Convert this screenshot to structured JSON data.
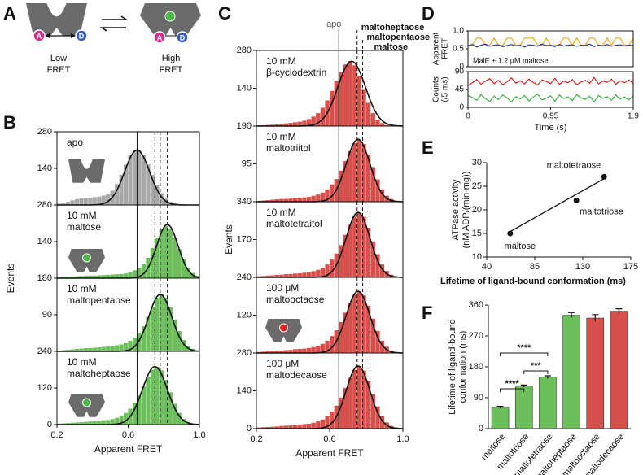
{
  "diagram": {
    "panel": "A",
    "acceptor": "A",
    "donor": "D",
    "low": [
      "Low",
      "FRET"
    ],
    "high": [
      "High",
      "FRET"
    ]
  },
  "chart_data": [
    {
      "type": "histogram-stack",
      "panel": "B",
      "xlabel": "Apparent FRET",
      "ylabel": "Events",
      "xlim": [
        0.2,
        1.0
      ],
      "xticks": [
        0.2,
        0.6,
        {
          "value": 1.0,
          "label": "1.0"
        }
      ],
      "bins": [
        0.2,
        0.225,
        0.25,
        0.275,
        0.3,
        0.325,
        0.35,
        0.375,
        0.4,
        0.425,
        0.45,
        0.475,
        0.5,
        0.525,
        0.55,
        0.575,
        0.6,
        0.625,
        0.65,
        0.675,
        0.7,
        0.725,
        0.75,
        0.775,
        0.8,
        0.825,
        0.85,
        0.875,
        0.9,
        0.925,
        0.95,
        0.975,
        1.0
      ],
      "vlines": [
        {
          "value": 0.65,
          "style": "solid"
        },
        {
          "value": 0.75,
          "style": "dashed"
        },
        {
          "value": 0.78,
          "style": "dashed"
        },
        {
          "value": 0.82,
          "style": "dashed"
        }
      ],
      "panels": [
        {
          "label": [
            "apo"
          ],
          "color": "#a8a8a8",
          "ylim": [
            0,
            280
          ],
          "yticks": [
            140,
            280
          ],
          "fit": {
            "center": 0.65,
            "sd": 0.07,
            "peak": 210
          },
          "counts": [
            5,
            8,
            12,
            18,
            22,
            25,
            27,
            28,
            30,
            32,
            36,
            42,
            55,
            80,
            115,
            155,
            190,
            210,
            210,
            190,
            155,
            115,
            75,
            45,
            24,
            12,
            6,
            3,
            1,
            0,
            0,
            0
          ]
        },
        {
          "label": [
            "10 mM",
            "maltose"
          ],
          "color": "#6cbf5a",
          "ylim": [
            0,
            280
          ],
          "yticks": [
            140,
            280
          ],
          "fit": {
            "center": 0.82,
            "sd": 0.06,
            "peak": 205
          },
          "counts": [
            3,
            4,
            5,
            6,
            7,
            8,
            9,
            10,
            10,
            11,
            12,
            13,
            14,
            15,
            16,
            18,
            22,
            30,
            40,
            55,
            78,
            115,
            155,
            188,
            200,
            188,
            155,
            112,
            72,
            40,
            20,
            9
          ]
        },
        {
          "label": [
            "10 mM",
            "maltopentaose"
          ],
          "color": "#6cbf5a",
          "ylim": [
            0,
            180
          ],
          "yticks": [
            90,
            180
          ],
          "fit": {
            "center": 0.78,
            "sd": 0.065,
            "peak": 140
          },
          "counts": [
            2,
            3,
            4,
            5,
            6,
            7,
            8,
            8,
            9,
            10,
            11,
            12,
            13,
            15,
            17,
            20,
            26,
            34,
            45,
            62,
            85,
            110,
            132,
            140,
            132,
            108,
            78,
            50,
            28,
            14,
            6,
            2
          ]
        },
        {
          "label": [
            "10 mM",
            "maltoheptaose"
          ],
          "color": "#6cbf5a",
          "ylim": [
            0,
            240
          ],
          "yticks": [
            0,
            120,
            240
          ],
          "fit": {
            "center": 0.75,
            "sd": 0.07,
            "peak": 190
          },
          "counts": [
            3,
            4,
            5,
            6,
            7,
            8,
            9,
            10,
            11,
            12,
            14,
            15,
            18,
            22,
            28,
            38,
            52,
            70,
            95,
            125,
            155,
            180,
            190,
            178,
            146,
            106,
            68,
            38,
            19,
            8,
            3,
            1
          ]
        }
      ]
    },
    {
      "type": "histogram-stack",
      "panel": "C",
      "xlabel": "Apparent FRET",
      "ylabel": "Events",
      "xlim": [
        0.2,
        1.0
      ],
      "xticks": [
        0.2,
        0.6,
        {
          "value": 1.0,
          "label": "1.0"
        }
      ],
      "bins": [
        0.2,
        0.225,
        0.25,
        0.275,
        0.3,
        0.325,
        0.35,
        0.375,
        0.4,
        0.425,
        0.45,
        0.475,
        0.5,
        0.525,
        0.55,
        0.575,
        0.6,
        0.625,
        0.65,
        0.675,
        0.7,
        0.725,
        0.75,
        0.775,
        0.8,
        0.825,
        0.85,
        0.875,
        0.9,
        0.925,
        0.95,
        0.975,
        1.0
      ],
      "vlines": [
        {
          "value": 0.65,
          "style": "solid",
          "label": "apo"
        },
        {
          "value": 0.75,
          "style": "dashed",
          "label": "maltoheptaose"
        },
        {
          "value": 0.78,
          "style": "dashed",
          "label": "maltopentaose"
        },
        {
          "value": 0.82,
          "style": "dashed",
          "label": "maltose"
        }
      ],
      "panels": [
        {
          "label": [
            "10 mM",
            "β-cyclodextrin"
          ],
          "color": "#d8504c",
          "ylim": [
            0,
            280
          ],
          "yticks": [
            140,
            280
          ],
          "fit": {
            "center": 0.72,
            "sd": 0.075,
            "peak": 240
          },
          "counts": [
            2,
            3,
            4,
            5,
            6,
            8,
            10,
            12,
            14,
            16,
            20,
            26,
            35,
            48,
            68,
            95,
            130,
            168,
            200,
            228,
            240,
            225,
            185,
            134,
            86,
            48,
            24,
            11,
            4,
            2,
            1,
            0
          ]
        },
        {
          "label": [
            "10 mM",
            "maltotriitol"
          ],
          "color": "#d8504c",
          "ylim": [
            0,
            190
          ],
          "yticks": [
            95,
            190
          ],
          "fit": {
            "center": 0.755,
            "sd": 0.065,
            "peak": 157
          },
          "counts": [
            2,
            3,
            4,
            5,
            6,
            7,
            7,
            8,
            9,
            10,
            11,
            12,
            15,
            18,
            23,
            31,
            43,
            57,
            78,
            102,
            127,
            147,
            155,
            145,
            119,
            87,
            56,
            31,
            15,
            7,
            2,
            1
          ]
        },
        {
          "label": [
            "10 mM",
            "maltotetraitol"
          ],
          "color": "#d8504c",
          "ylim": [
            0,
            340
          ],
          "yticks": [
            170,
            340
          ],
          "fit": {
            "center": 0.755,
            "sd": 0.065,
            "peak": 292
          },
          "counts": [
            5,
            6,
            8,
            9,
            11,
            12,
            14,
            15,
            17,
            18,
            21,
            23,
            28,
            34,
            43,
            58,
            80,
            107,
            145,
            191,
            237,
            275,
            290,
            272,
            223,
            162,
            104,
            58,
            29,
            12,
            5,
            2
          ]
        },
        {
          "label": [
            "100 μM",
            "maltooctaose"
          ],
          "color": "#d8504c",
          "ylim": [
            0,
            240
          ],
          "yticks": [
            120,
            240
          ],
          "fit": {
            "center": 0.755,
            "sd": 0.065,
            "peak": 196
          },
          "counts": [
            3,
            4,
            5,
            6,
            7,
            8,
            9,
            10,
            12,
            13,
            14,
            16,
            19,
            23,
            29,
            39,
            54,
            72,
            98,
            128,
            160,
            185,
            195,
            183,
            150,
            109,
            70,
            39,
            20,
            8,
            3,
            1
          ]
        },
        {
          "label": [
            "100 μM",
            "maltodecaose"
          ],
          "color": "#d8504c",
          "ylim": [
            0,
            280
          ],
          "yticks": [
            0,
            140,
            280
          ],
          "fit": {
            "center": 0.755,
            "sd": 0.065,
            "peak": 232
          },
          "counts": [
            4,
            5,
            6,
            7,
            8,
            10,
            11,
            12,
            13,
            15,
            17,
            18,
            22,
            27,
            34,
            46,
            63,
            85,
            115,
            151,
            188,
            218,
            230,
            215,
            177,
            128,
            82,
            46,
            23,
            10,
            4,
            1
          ]
        }
      ]
    },
    {
      "type": "trace",
      "panel": "D",
      "xlabel": "Time (s)",
      "annotation": "MalE + 1.2 µM maltose",
      "xlim": [
        0,
        1.9
      ],
      "xticks": [
        0,
        0.95,
        1.9
      ],
      "x": [
        0,
        0.05,
        0.1,
        0.15,
        0.2,
        0.25,
        0.3,
        0.35,
        0.4,
        0.45,
        0.5,
        0.55,
        0.6,
        0.65,
        0.7,
        0.75,
        0.8,
        0.85,
        0.9,
        0.95,
        1.0,
        1.05,
        1.1,
        1.15,
        1.2,
        1.25,
        1.3,
        1.35,
        1.4,
        1.45,
        1.5,
        1.55,
        1.6,
        1.65,
        1.7,
        1.75,
        1.8,
        1.85,
        1.9
      ],
      "subplots": [
        {
          "ylabel": [
            "Apparent",
            "FRET"
          ],
          "ylim": [
            0,
            1
          ],
          "yticks": [
            0,
            0.5,
            {
              "value": 1,
              "label": "1.0"
            }
          ],
          "series": [
            {
              "color": "#f5a623",
              "values": [
                0.6,
                0.6,
                0.8,
                0.8,
                0.6,
                0.6,
                0.8,
                0.6,
                0.6,
                0.8,
                0.8,
                0.6,
                0.6,
                0.8,
                0.8,
                0.8,
                0.6,
                0.6,
                0.8,
                0.6,
                0.6,
                0.6,
                0.8,
                0.8,
                0.6,
                0.8,
                0.6,
                0.6,
                0.8,
                0.8,
                0.6,
                0.6,
                0.8,
                0.6,
                0.8,
                0.8,
                0.6,
                0.6,
                0.8
              ]
            },
            {
              "color": "#2b3a9b",
              "values": [
                0.58,
                0.62,
                0.55,
                0.6,
                0.63,
                0.57,
                0.6,
                0.61,
                0.56,
                0.59,
                0.62,
                0.58,
                0.6,
                0.55,
                0.61,
                0.6,
                0.57,
                0.63,
                0.59,
                0.6,
                0.56,
                0.62,
                0.58,
                0.6,
                0.61,
                0.57,
                0.6,
                0.59,
                0.63,
                0.56,
                0.6,
                0.58,
                0.62,
                0.57,
                0.6,
                0.61,
                0.58,
                0.6,
                0.59
              ]
            }
          ]
        },
        {
          "ylabel": [
            "Counts",
            "(/5 ms)"
          ],
          "ylim": [
            0,
            90
          ],
          "yticks": [
            0,
            45,
            90
          ],
          "series": [
            {
              "color": "#d62020",
              "values": [
                55,
                62,
                70,
                58,
                66,
                72,
                60,
                68,
                57,
                64,
                74,
                61,
                67,
                59,
                71,
                63,
                56,
                69,
                65,
                60,
                73,
                58,
                66,
                62,
                70,
                57,
                64,
                68,
                61,
                75,
                59,
                66,
                63,
                71,
                58,
                67,
                62,
                69,
                60
              ]
            },
            {
              "color": "#3cb043",
              "values": [
                30,
                25,
                18,
                32,
                22,
                15,
                28,
                20,
                31,
                24,
                14,
                27,
                21,
                30,
                16,
                26,
                33,
                19,
                23,
                29,
                15,
                31,
                22,
                26,
                17,
                32,
                24,
                20,
                28,
                13,
                30,
                23,
                27,
                18,
                31,
                21,
                26,
                19,
                29
              ]
            }
          ]
        }
      ]
    },
    {
      "type": "scatter",
      "panel": "E",
      "xlabel": "Lifetime of ligand-bound conformation (ms)",
      "ylabel": [
        "ATPase activity",
        "(nM ADP/(min·mg))"
      ],
      "xlim": [
        40,
        175
      ],
      "xticks": [
        40,
        85,
        130,
        175
      ],
      "ylim": [
        10,
        30
      ],
      "yticks": [
        10,
        15,
        20,
        25,
        30
      ],
      "labels": [
        "maltose",
        "maltotriose",
        "maltotetraose"
      ],
      "x": [
        62,
        124,
        150
      ],
      "y": [
        15,
        22,
        27
      ],
      "color": "#111111",
      "fit_line": {
        "x": [
          62,
          150
        ],
        "y": [
          15.4,
          26.6
        ]
      }
    },
    {
      "type": "bar",
      "panel": "F",
      "ylabel": [
        "Lifetime of ligand-bound",
        "conformation (ms)"
      ],
      "categories": [
        "maltose",
        "maltotriose",
        "maltotetraose",
        "maltoheptaose",
        "maltooctaose",
        "maltodecaose"
      ],
      "values": [
        62,
        124,
        150,
        330,
        322,
        342
      ],
      "errors": [
        3,
        3,
        4,
        8,
        10,
        7
      ],
      "colors": [
        "#6cbf5a",
        "#6cbf5a",
        "#6cbf5a",
        "#6cbf5a",
        "#d8504c",
        "#d8504c"
      ],
      "ylim": [
        0,
        360
      ],
      "yticks": [
        0,
        90,
        180,
        270,
        360
      ],
      "significance": [
        {
          "pair": [
            "maltose",
            "maltotetraose"
          ],
          "label": "****"
        },
        {
          "pair": [
            "maltotriose",
            "maltotetraose"
          ],
          "label": "***"
        },
        {
          "pair": [
            "maltose",
            "maltotriose"
          ],
          "label": "****"
        }
      ]
    }
  ]
}
